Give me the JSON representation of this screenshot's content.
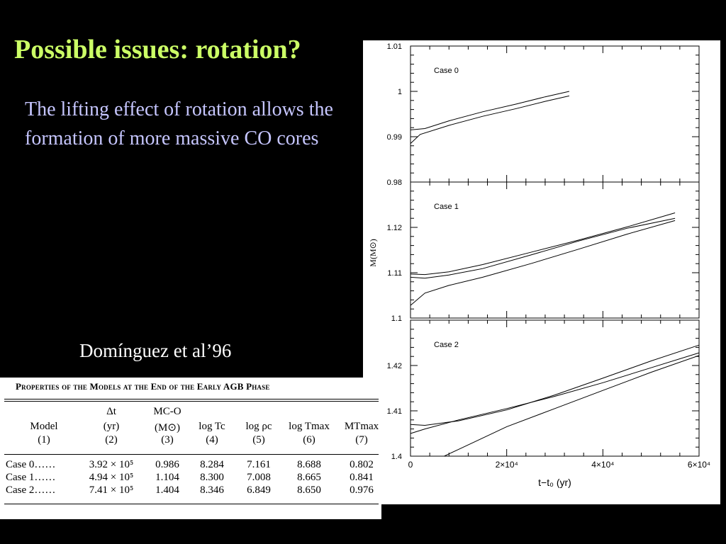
{
  "slide": {
    "title": "Possible issues: rotation?",
    "body": "The lifting effect of rotation allows the formation of more massive CO cores",
    "citation": "Domínguez et al’96"
  },
  "table": {
    "title": "Properties of the Models at the End of the Early AGB Phase",
    "headers": [
      {
        "line1": "",
        "line2": "Model",
        "line3": "(1)"
      },
      {
        "line1": "Δt",
        "line2": "(yr)",
        "line3": "(2)"
      },
      {
        "line1": "MC-O",
        "line2": "(M⊙)",
        "line3": "(3)"
      },
      {
        "line1": "",
        "line2": "log Tc",
        "line3": "(4)"
      },
      {
        "line1": "",
        "line2": "log ρc",
        "line3": "(5)"
      },
      {
        "line1": "",
        "line2": "log Tmax",
        "line3": "(6)"
      },
      {
        "line1": "",
        "line2": "MTmax",
        "line3": "(7)"
      }
    ],
    "rows": [
      [
        "Case 0……",
        "3.92 × 10⁵",
        "0.986",
        "8.284",
        "7.161",
        "8.688",
        "0.802"
      ],
      [
        "Case 1……",
        "4.94 × 10⁵",
        "1.104",
        "8.300",
        "7.008",
        "8.665",
        "0.841"
      ],
      [
        "Case 2……",
        "7.41 × 10⁵",
        "1.404",
        "8.346",
        "6.849",
        "8.650",
        "0.976"
      ]
    ]
  },
  "chart_data": {
    "type": "line",
    "xlabel": "t−t₀ (yr)",
    "ylabel": "M(M⊙)",
    "x_ticks": [
      "0",
      "2×10⁴",
      "4×10⁴",
      "6×10⁴"
    ],
    "xlim": [
      0,
      60000
    ],
    "panels": [
      {
        "label": "Case 0",
        "ylim": [
          0.98,
          1.01
        ],
        "y_ticks": [
          "1.01",
          "1",
          "0.99",
          "0.98"
        ],
        "y_tick_values": [
          1.01,
          1.0,
          0.99,
          0.98
        ],
        "series": [
          {
            "name": "upper",
            "x": [
              0,
              3000,
              8000,
              15000,
              22000,
              28000,
              33000
            ],
            "y": [
              0.9915,
              0.9918,
              0.9935,
              0.9955,
              0.9972,
              0.9988,
              1.0
            ]
          },
          {
            "name": "lower",
            "x": [
              0,
              2000,
              8000,
              15000,
              22000,
              28000,
              33000
            ],
            "y": [
              0.9885,
              0.9905,
              0.9925,
              0.9945,
              0.9962,
              0.9978,
              0.999
            ]
          }
        ]
      },
      {
        "label": "Case 1",
        "ylim": [
          1.1,
          1.13
        ],
        "y_ticks": [
          "1.12",
          "1.11",
          "1.1"
        ],
        "y_tick_values": [
          1.12,
          1.11,
          1.1
        ],
        "series": [
          {
            "name": "upper",
            "x": [
              0,
              3000,
              8000,
              15000,
              25000,
              35000,
              45000,
              55000
            ],
            "y": [
              1.1097,
              1.1096,
              1.1102,
              1.1118,
              1.1145,
              1.1172,
              1.1201,
              1.1232
            ]
          },
          {
            "name": "lower",
            "x": [
              0,
              3000,
              8000,
              15000,
              25000,
              35000,
              45000,
              55000
            ],
            "y": [
              1.109,
              1.1088,
              1.1095,
              1.1109,
              1.1139,
              1.117,
              1.1198,
              1.122
            ]
          },
          {
            "name": "lowest",
            "x": [
              0,
              3000,
              8000,
              15000,
              25000,
              35000,
              45000,
              55000
            ],
            "y": [
              1.1028,
              1.1055,
              1.1072,
              1.109,
              1.112,
              1.1152,
              1.1185,
              1.1215
            ]
          }
        ]
      },
      {
        "label": "Case 2",
        "ylim": [
          1.4,
          1.43
        ],
        "y_ticks": [
          "1.42",
          "1.41",
          "1.4"
        ],
        "y_tick_values": [
          1.42,
          1.41,
          1.4
        ],
        "series": [
          {
            "name": "upper",
            "x": [
              0,
              3000,
              10000,
              20000,
              30000,
              40000,
              50000,
              60000
            ],
            "y": [
              1.407,
              1.4068,
              1.4078,
              1.4102,
              1.4135,
              1.4172,
              1.421,
              1.4245
            ]
          },
          {
            "name": "lower",
            "x": [
              0,
              3000,
              10000,
              20000,
              30000,
              40000,
              50000,
              60000
            ],
            "y": [
              1.405,
              1.406,
              1.408,
              1.4105,
              1.4132,
              1.4162,
              1.4195,
              1.4228
            ]
          },
          {
            "name": "lowest",
            "x": [
              7000,
              10000,
              15000,
              20000,
              30000,
              40000,
              50000,
              60000
            ],
            "y": [
              1.4,
              1.4015,
              1.404,
              1.4065,
              1.4105,
              1.4145,
              1.4185,
              1.4222
            ]
          }
        ]
      }
    ]
  }
}
